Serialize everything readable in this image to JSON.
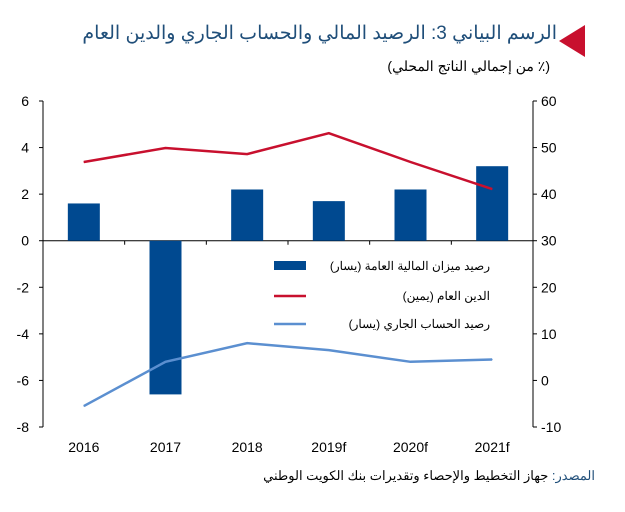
{
  "header": {
    "title": "الرسم البياني 3: الرصيد المالي والحساب الجاري والدين العام",
    "subtitle": "(٪ من إجمالي الناتج المحلي)"
  },
  "source": {
    "label": "المصدر:",
    "text": "جهاز التخطيط والإحصاء وتقديرات بنك الكويت الوطني"
  },
  "colors": {
    "bar": "#004990",
    "debt": "#c8102e",
    "current": "#5b8fd0",
    "accent": "#c8102e"
  },
  "chart_data": {
    "type": "bar+line",
    "categories": [
      "2016",
      "2017",
      "2018",
      "2019f",
      "2020f",
      "2021f"
    ],
    "left_axis": {
      "ylim": [
        -8,
        6
      ],
      "ticks": [
        "-8",
        "-6",
        "-4",
        "-2",
        "0",
        "2",
        "4",
        "6"
      ]
    },
    "right_axis": {
      "ylim": [
        -10,
        60
      ],
      "ticks": [
        "-10",
        "0",
        "10",
        "20",
        "30",
        "40",
        "50",
        "60"
      ]
    },
    "series": [
      {
        "name": "رصيد ميزان المالية العامة (يسار)",
        "type": "bar",
        "axis": "left",
        "values": [
          1.6,
          -6.6,
          2.2,
          1.7,
          2.2,
          3.2
        ]
      },
      {
        "name": "الدين العام (يمين)",
        "type": "line",
        "axis": "right",
        "values": [
          46.9,
          49.9,
          48.6,
          53.1,
          46.9,
          41.1
        ]
      },
      {
        "name": "رصيد الحساب الجاري (يسار)",
        "type": "line",
        "axis": "left",
        "values": [
          -7.1,
          -5.2,
          -4.4,
          -4.7,
          -5.2,
          -5.1
        ]
      }
    ],
    "legend_position": "center-right",
    "grid": false
  }
}
